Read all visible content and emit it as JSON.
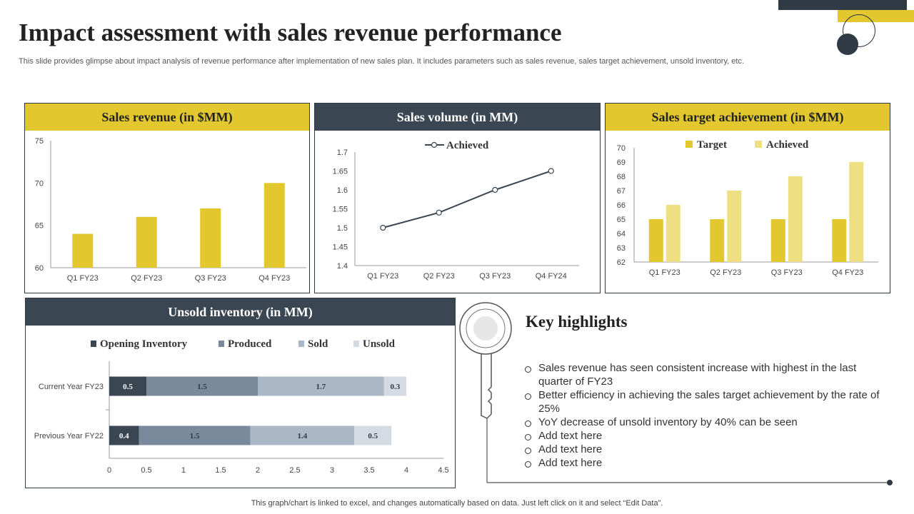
{
  "header": {
    "title": "Impact assessment with sales revenue performance",
    "subtitle": "This slide provides glimpse about impact analysis of revenue performance after implementation of new sales plan. It includes parameters such as sales revenue, sales target achievement, unsold inventory, etc."
  },
  "colors": {
    "yellow": "#e2c72f",
    "light_yellow": "#efdf83",
    "dark": "#3a4652",
    "produced": "#7a8a9c",
    "sold": "#a9b7c6",
    "unsold": "#d5dbe3"
  },
  "chart_data": [
    {
      "type": "bar",
      "title": "Sales revenue (in $MM)",
      "categories": [
        "Q1 FY23",
        "Q2 FY23",
        "Q3 FY23",
        "Q4 FY23"
      ],
      "values": [
        64,
        66,
        67,
        70
      ],
      "ylim": [
        60,
        75
      ],
      "yticks": [
        60,
        65,
        70,
        75
      ]
    },
    {
      "type": "line",
      "title": "Sales volume (in MM)",
      "categories": [
        "Q1 FY23",
        "Q2 FY23",
        "Q3 FY23",
        "Q4 FY24"
      ],
      "series": [
        {
          "name": "Achieved",
          "values": [
            1.5,
            1.54,
            1.6,
            1.65
          ]
        }
      ],
      "ylim": [
        1.4,
        1.7
      ],
      "yticks": [
        "1.4",
        "1.45",
        "1.5",
        "1.55",
        "1.6",
        "1.65",
        "1.7"
      ]
    },
    {
      "type": "bar",
      "title": "Sales target achievement (in $MM)",
      "categories": [
        "Q1 FY23",
        "Q2 FY23",
        "Q3 FY23",
        "Q4 FY23"
      ],
      "series": [
        {
          "name": "Target",
          "values": [
            65,
            65,
            65,
            65
          ]
        },
        {
          "name": "Achieved",
          "values": [
            66,
            67,
            68,
            69
          ]
        }
      ],
      "ylim": [
        62,
        70
      ],
      "yticks": [
        62,
        63,
        64,
        65,
        66,
        67,
        68,
        69,
        70
      ]
    },
    {
      "type": "bar",
      "orientation": "horizontal",
      "stacked": true,
      "title": "Unsold inventory (in MM)",
      "categories": [
        "Current Year FY23",
        "Previous Year FY22"
      ],
      "series": [
        {
          "name": "Opening Inventory",
          "values": [
            0.5,
            0.4
          ]
        },
        {
          "name": "Produced",
          "values": [
            1.5,
            1.5
          ]
        },
        {
          "name": "Sold",
          "values": [
            1.7,
            1.4
          ]
        },
        {
          "name": "Unsold",
          "values": [
            0.3,
            0.5
          ]
        }
      ],
      "xlim": [
        0,
        4.5
      ],
      "xticks": [
        "0",
        "0.5",
        "1",
        "1.5",
        "2",
        "2.5",
        "3",
        "3.5",
        "4",
        "4.5"
      ]
    }
  ],
  "highlights": {
    "title": "Key highlights",
    "items": [
      "Sales revenue has seen consistent increase with highest in the last quarter of FY23",
      "Better efficiency in achieving the sales target achievement by the rate of 25%",
      "YoY decrease of unsold inventory  by 40% can be seen",
      "Add text here",
      "Add text here",
      "Add text here"
    ]
  },
  "footer": {
    "note": "This graph/chart is linked to excel,  and changes automatically based on data. Just left click on it and select “Edit Data”."
  }
}
